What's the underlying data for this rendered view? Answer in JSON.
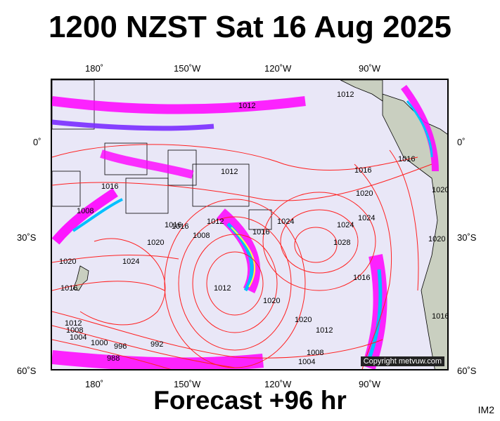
{
  "title": "1200 NZST Sat 16 Aug 2025",
  "footer": "Forecast +96 hr",
  "image_id": "IM2",
  "copyright": "Copyright metvuw.com",
  "lon_labels": [
    "180˚",
    "150˚W",
    "120˚W",
    "90˚W"
  ],
  "lat_labels": [
    "0˚",
    "30˚S",
    "60˚S"
  ],
  "isobar_labels": [
    "1012",
    "1012",
    "1012",
    "1016",
    "1020",
    "1024",
    "1028",
    "1024",
    "1016",
    "1020",
    "1020",
    "1016",
    "1008",
    "1016",
    "1020",
    "1024",
    "1016",
    "1012",
    "1008",
    "1004",
    "1000",
    "996",
    "988",
    "992",
    "1020",
    "1016",
    "1012",
    "1008",
    "1004",
    "1012",
    "1008",
    "1016",
    "1020",
    "1024",
    "1016",
    "1016",
    "1020",
    "1012"
  ],
  "colors": {
    "ocean": "#e9e7f7",
    "land": "#c9cfc0",
    "isobar": "#ff2020",
    "rain_light": "#ff00ff",
    "rain_mid": "#7a2cff",
    "rain_heavy": "#00c0ff",
    "rain_extreme": "#ffff40"
  }
}
